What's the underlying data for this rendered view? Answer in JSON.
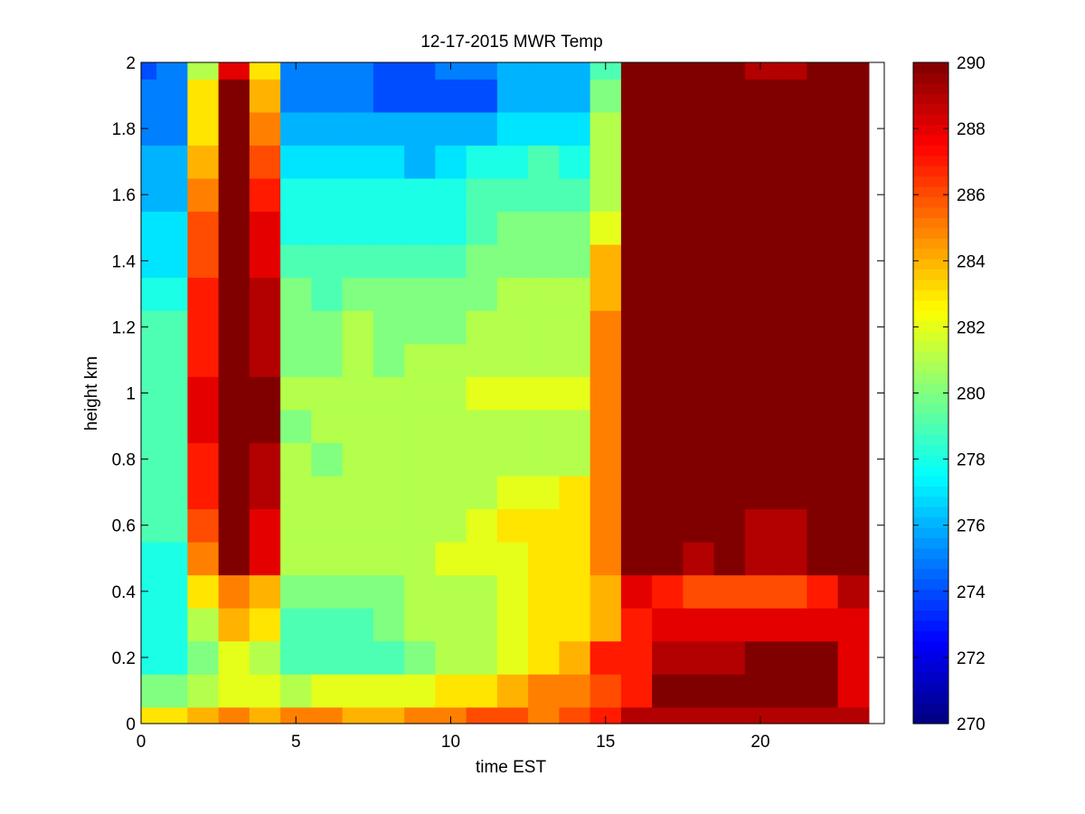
{
  "chart_data": {
    "type": "heatmap",
    "title": "12-17-2015 MWR Temp",
    "xlabel": "time EST",
    "ylabel": "height km",
    "xlim": [
      0,
      24
    ],
    "ylim": [
      0,
      2
    ],
    "x_ticks": [
      0,
      5,
      10,
      15,
      20
    ],
    "y_ticks": [
      0,
      0.2,
      0.4,
      0.6,
      0.8,
      1,
      1.2,
      1.4,
      1.6,
      1.8,
      2
    ],
    "y_tick_labels": [
      "0",
      "0.2",
      "0.4",
      "0.6",
      "0.8",
      "1",
      "1.2",
      "1.4",
      "1.6",
      "1.8",
      "2"
    ],
    "colorbar": {
      "range": [
        270,
        290
      ],
      "ticks": [
        270,
        272,
        274,
        276,
        278,
        280,
        282,
        284,
        286,
        288,
        290
      ],
      "colormap": "jet"
    },
    "x_centers": [
      0,
      1,
      2,
      3,
      4,
      5,
      6,
      7,
      8,
      9,
      10,
      11,
      12,
      13,
      14,
      15,
      16,
      17,
      18,
      19,
      20,
      21,
      22,
      23
    ],
    "y_edges": [
      0,
      0.05,
      0.15,
      0.25,
      0.35,
      0.45,
      0.55,
      0.65,
      0.75,
      0.85,
      0.95,
      1.05,
      1.15,
      1.25,
      1.35,
      1.45,
      1.55,
      1.65,
      1.75,
      1.85,
      1.95,
      2.0
    ],
    "values": [
      [
        283,
        283,
        284,
        285,
        284,
        285,
        285,
        284,
        284,
        285,
        285,
        286,
        286,
        285,
        286,
        287,
        289,
        289,
        289,
        289,
        289,
        289,
        289,
        289
      ],
      [
        280,
        280,
        281,
        282,
        282,
        281,
        282,
        282,
        282,
        282,
        283,
        283,
        284,
        285,
        285,
        286,
        287,
        290,
        290,
        290,
        290,
        290,
        290,
        288
      ],
      [
        278,
        278,
        280,
        282,
        281,
        279,
        279,
        279,
        279,
        280,
        281,
        281,
        282,
        283,
        284,
        287,
        287,
        289,
        289,
        289,
        290,
        290,
        290,
        288
      ],
      [
        278,
        278,
        281,
        284,
        283,
        279,
        279,
        279,
        280,
        281,
        281,
        281,
        282,
        283,
        283,
        284,
        287,
        288,
        288,
        288,
        288,
        288,
        288,
        288
      ],
      [
        278,
        278,
        283,
        285,
        284,
        280,
        280,
        280,
        280,
        281,
        281,
        281,
        282,
        283,
        283,
        284,
        288,
        287,
        286,
        286,
        286,
        286,
        287,
        289
      ],
      [
        278,
        278,
        285,
        290,
        288,
        281,
        281,
        281,
        281,
        281,
        282,
        282,
        282,
        283,
        283,
        285,
        290,
        290,
        289,
        290,
        289,
        289,
        290,
        290
      ],
      [
        279,
        279,
        286,
        290,
        288,
        281,
        281,
        281,
        281,
        281,
        281,
        282,
        283,
        283,
        283,
        285,
        290,
        290,
        290,
        290,
        289,
        289,
        290,
        290
      ],
      [
        279,
        279,
        287,
        290,
        289,
        281,
        281,
        281,
        281,
        281,
        281,
        281,
        282,
        282,
        283,
        285,
        290,
        290,
        290,
        290,
        290,
        290,
        290,
        290
      ],
      [
        279,
        279,
        287,
        290,
        289,
        281,
        280,
        281,
        281,
        281,
        281,
        281,
        281,
        281,
        281,
        285,
        290,
        290,
        290,
        290,
        290,
        290,
        290,
        290
      ],
      [
        279,
        279,
        288,
        290,
        290,
        280,
        281,
        281,
        281,
        281,
        281,
        281,
        281,
        281,
        281,
        285,
        290,
        290,
        290,
        290,
        290,
        290,
        290,
        290
      ],
      [
        279,
        279,
        288,
        290,
        290,
        281,
        281,
        281,
        281,
        281,
        281,
        282,
        282,
        282,
        282,
        285,
        290,
        290,
        290,
        290,
        290,
        290,
        290,
        290
      ],
      [
        279,
        279,
        287,
        290,
        289,
        280,
        280,
        281,
        280,
        281,
        281,
        281,
        281,
        281,
        281,
        285,
        290,
        290,
        290,
        290,
        290,
        290,
        290,
        290
      ],
      [
        279,
        279,
        287,
        290,
        289,
        280,
        280,
        281,
        280,
        280,
        280,
        281,
        281,
        281,
        281,
        285,
        290,
        290,
        290,
        290,
        290,
        290,
        290,
        290
      ],
      [
        278,
        278,
        287,
        290,
        289,
        280,
        279,
        280,
        280,
        280,
        280,
        280,
        281,
        281,
        281,
        284,
        290,
        290,
        290,
        290,
        290,
        290,
        290,
        290
      ],
      [
        277,
        277,
        286,
        290,
        288,
        279,
        279,
        279,
        279,
        279,
        279,
        280,
        280,
        280,
        280,
        284,
        290,
        290,
        290,
        290,
        290,
        290,
        290,
        290
      ],
      [
        277,
        277,
        286,
        290,
        288,
        278,
        278,
        278,
        278,
        278,
        278,
        279,
        280,
        280,
        280,
        282,
        290,
        290,
        290,
        290,
        290,
        290,
        290,
        290
      ],
      [
        276,
        276,
        285,
        290,
        287,
        278,
        278,
        278,
        278,
        278,
        278,
        279,
        279,
        279,
        279,
        281,
        290,
        290,
        290,
        290,
        290,
        290,
        290,
        290
      ],
      [
        276,
        276,
        284,
        290,
        286,
        277,
        277,
        277,
        277,
        276,
        277,
        278,
        278,
        279,
        278,
        281,
        290,
        290,
        290,
        290,
        290,
        290,
        290,
        290
      ],
      [
        275,
        275,
        283,
        290,
        285,
        276,
        276,
        276,
        276,
        276,
        276,
        276,
        277,
        277,
        277,
        281,
        290,
        290,
        290,
        290,
        290,
        290,
        290,
        290
      ],
      [
        275,
        275,
        283,
        290,
        284,
        275,
        275,
        275,
        274,
        274,
        274,
        274,
        276,
        276,
        276,
        280,
        290,
        290,
        290,
        290,
        290,
        290,
        290,
        290
      ],
      [
        274,
        275,
        281,
        288,
        283,
        275,
        275,
        275,
        274,
        274,
        275,
        275,
        276,
        276,
        276,
        279,
        290,
        290,
        290,
        290,
        289,
        289,
        290,
        290
      ]
    ]
  }
}
